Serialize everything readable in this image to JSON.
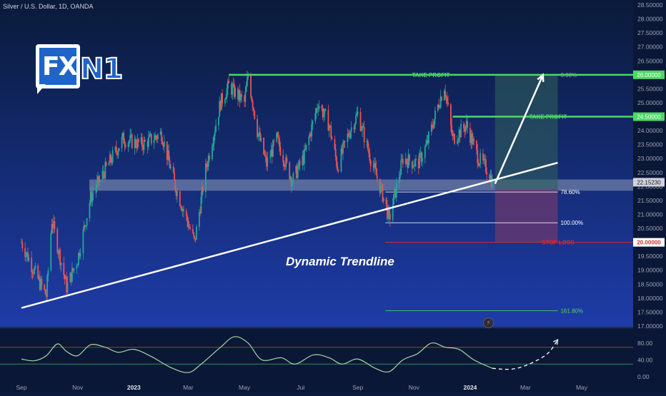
{
  "header": {
    "symbol": "Silver / U.S. Dollar, 1D, OANDA"
  },
  "logo": {
    "part1": "FX",
    "part2": "N1"
  },
  "annotation": "Dynamic Trendline",
  "colors": {
    "background": "#0c1a3e",
    "bull": "#26a69a",
    "bear": "#ef5350",
    "take_profit": "#4cd964",
    "stop_loss": "#d32f2f",
    "trendline": "#ffffff",
    "rsi": "#a5d6a7",
    "profit_zone": "#2e5d5a",
    "loss_zone": "#6b3a6e",
    "support_zone": "#aab4c8"
  },
  "chart_data": [
    {
      "type": "candlestick",
      "title": "Silver / U.S. Dollar, 1D, OANDA",
      "ylim": [
        17.0,
        28.5
      ],
      "price_ticks": [
        "28.50000",
        "28.00000",
        "27.50000",
        "27.00000",
        "26.50000",
        "26.00000",
        "25.50000",
        "25.00000",
        "24.50000",
        "24.00000",
        "23.50000",
        "23.00000",
        "22.50000",
        "22.00000",
        "21.50000",
        "21.00000",
        "20.50000",
        "20.00000",
        "19.50000",
        "19.00000",
        "18.50000",
        "18.00000",
        "17.50000",
        "17.00000"
      ],
      "x_labels": [
        "Sep",
        "Nov",
        "2023",
        "Mar",
        "May",
        "Jul",
        "Sep",
        "Nov",
        "2024",
        "Mar",
        "May"
      ],
      "last_price": "22.15230",
      "price_path": [
        {
          "date": "2022-09-01",
          "close": 20.0
        },
        {
          "date": "2022-09-20",
          "close": 18.6
        },
        {
          "date": "2022-09-28",
          "close": 18.1
        },
        {
          "date": "2022-10-04",
          "close": 20.8
        },
        {
          "date": "2022-10-20",
          "close": 18.4
        },
        {
          "date": "2022-11-01",
          "close": 19.4
        },
        {
          "date": "2022-11-15",
          "close": 21.6
        },
        {
          "date": "2022-12-01",
          "close": 22.6
        },
        {
          "date": "2022-12-20",
          "close": 23.7
        },
        {
          "date": "2023-01-10",
          "close": 23.5
        },
        {
          "date": "2023-01-31",
          "close": 23.9
        },
        {
          "date": "2023-02-15",
          "close": 22.0
        },
        {
          "date": "2023-03-08",
          "close": 20.0
        },
        {
          "date": "2023-03-20",
          "close": 22.6
        },
        {
          "date": "2023-04-05",
          "close": 25.0
        },
        {
          "date": "2023-04-14",
          "close": 25.6
        },
        {
          "date": "2023-05-01",
          "close": 25.0
        },
        {
          "date": "2023-05-05",
          "close": 26.0
        },
        {
          "date": "2023-05-15",
          "close": 24.0
        },
        {
          "date": "2023-05-25",
          "close": 22.8
        },
        {
          "date": "2023-06-05",
          "close": 23.7
        },
        {
          "date": "2023-06-22",
          "close": 22.2
        },
        {
          "date": "2023-07-05",
          "close": 23.1
        },
        {
          "date": "2023-07-20",
          "close": 25.0
        },
        {
          "date": "2023-08-01",
          "close": 24.2
        },
        {
          "date": "2023-08-10",
          "close": 22.7
        },
        {
          "date": "2023-08-22",
          "close": 23.9
        },
        {
          "date": "2023-09-01",
          "close": 24.6
        },
        {
          "date": "2023-09-15",
          "close": 23.0
        },
        {
          "date": "2023-10-01",
          "close": 21.4
        },
        {
          "date": "2023-10-05",
          "close": 20.8
        },
        {
          "date": "2023-10-20",
          "close": 23.0
        },
        {
          "date": "2023-11-05",
          "close": 22.8
        },
        {
          "date": "2023-11-15",
          "close": 23.5
        },
        {
          "date": "2023-11-28",
          "close": 25.0
        },
        {
          "date": "2023-12-04",
          "close": 25.6
        },
        {
          "date": "2023-12-13",
          "close": 23.7
        },
        {
          "date": "2023-12-28",
          "close": 24.2
        },
        {
          "date": "2024-01-10",
          "close": 23.0
        },
        {
          "date": "2024-01-20",
          "close": 22.6
        },
        {
          "date": "2024-01-25",
          "close": 22.15
        }
      ],
      "levels": [
        {
          "label": "TAKE PROFIT",
          "price_label": "26.00000",
          "price": 26.0,
          "type": "take_profit"
        },
        {
          "label": "TAKE PROFIT",
          "price_label": "24.50000",
          "price": 24.5,
          "type": "take_profit"
        },
        {
          "label": "STOP LOSS",
          "price_label": "20.00000",
          "price": 20.0,
          "type": "stop_loss"
        }
      ],
      "fib_levels": [
        {
          "label": "0.00%",
          "price": 26.0
        },
        {
          "label": "78.60%",
          "price": 21.8
        },
        {
          "label": "100.00%",
          "price": 20.7
        },
        {
          "label": "161.80%",
          "price": 17.55
        }
      ],
      "support_zone": [
        21.85,
        22.25
      ],
      "trendline": [
        {
          "date": "2022-09-01",
          "price": 17.65
        },
        {
          "date": "2024-04-05",
          "price": 22.85
        }
      ],
      "projection_arrow": [
        {
          "date": "2024-01-28",
          "price": 22.1
        },
        {
          "date": "2024-03-20",
          "price": 26.0
        }
      ]
    },
    {
      "type": "line",
      "title": "",
      "ylim": [
        0,
        100
      ],
      "y_ticks": [
        "80.00",
        "40.00",
        "0.00"
      ],
      "levels": [
        70,
        30
      ],
      "series": [
        {
          "values": [
            {
              "date": "2022-09-01",
              "v": 42
            },
            {
              "date": "2022-09-15",
              "v": 38
            },
            {
              "date": "2022-09-28",
              "v": 50
            },
            {
              "date": "2022-10-10",
              "v": 78
            },
            {
              "date": "2022-10-20",
              "v": 60
            },
            {
              "date": "2022-11-01",
              "v": 50
            },
            {
              "date": "2022-11-15",
              "v": 76
            },
            {
              "date": "2022-12-01",
              "v": 70
            },
            {
              "date": "2022-12-15",
              "v": 58
            },
            {
              "date": "2023-01-01",
              "v": 65
            },
            {
              "date": "2023-01-20",
              "v": 48
            },
            {
              "date": "2023-02-10",
              "v": 22
            },
            {
              "date": "2023-03-01",
              "v": 10
            },
            {
              "date": "2023-03-15",
              "v": 30
            },
            {
              "date": "2023-04-05",
              "v": 70
            },
            {
              "date": "2023-04-20",
              "v": 95
            },
            {
              "date": "2023-05-05",
              "v": 80
            },
            {
              "date": "2023-05-20",
              "v": 40
            },
            {
              "date": "2023-06-10",
              "v": 45
            },
            {
              "date": "2023-06-25",
              "v": 30
            },
            {
              "date": "2023-07-15",
              "v": 52
            },
            {
              "date": "2023-08-01",
              "v": 45
            },
            {
              "date": "2023-08-15",
              "v": 30
            },
            {
              "date": "2023-09-01",
              "v": 42
            },
            {
              "date": "2023-09-20",
              "v": 20
            },
            {
              "date": "2023-10-05",
              "v": 12
            },
            {
              "date": "2023-10-20",
              "v": 40
            },
            {
              "date": "2023-11-05",
              "v": 55
            },
            {
              "date": "2023-11-20",
              "v": 80
            },
            {
              "date": "2023-12-05",
              "v": 70
            },
            {
              "date": "2023-12-20",
              "v": 65
            },
            {
              "date": "2024-01-05",
              "v": 40
            },
            {
              "date": "2024-01-25",
              "v": 20
            }
          ]
        }
      ],
      "projection": [
        {
          "date": "2024-01-25",
          "v": 20
        },
        {
          "date": "2024-02-15",
          "v": 18
        },
        {
          "date": "2024-03-05",
          "v": 30
        },
        {
          "date": "2024-03-25",
          "v": 55
        },
        {
          "date": "2024-04-05",
          "v": 88
        }
      ]
    }
  ]
}
